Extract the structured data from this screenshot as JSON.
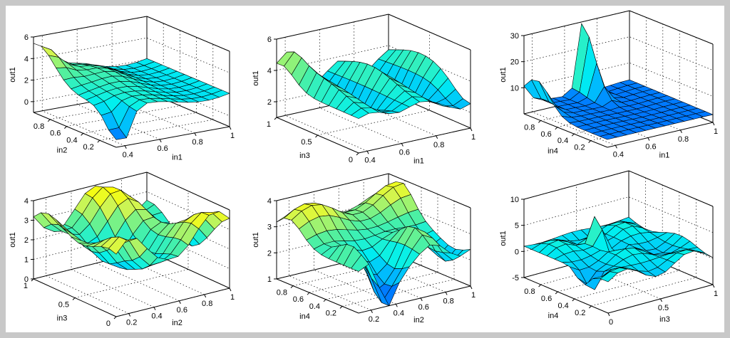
{
  "figure": {
    "background": "#c8c8c8",
    "plot_background": "#ffffff"
  },
  "chart_data": [
    {
      "type": "surface",
      "xlabel": "in1",
      "ylabel": "in2",
      "zlabel": "out1",
      "x_ticks": [
        "0.4",
        "0.6",
        "0.8",
        "1"
      ],
      "xlim": [
        0.35,
        1.0
      ],
      "y_ticks": [
        "0.2",
        "0.4",
        "0.6",
        "0.8"
      ],
      "ylim": [
        0.0,
        1.0
      ],
      "z_ticks": [
        "0",
        "2",
        "4",
        "6"
      ],
      "zlim": [
        -1,
        6
      ],
      "surface_shape": "high plateau (~5.5) at low in1/high in2, deep dip to ~-1 near in1=0.4,in2=0.0, flat ~2-3 elsewhere"
    },
    {
      "type": "surface",
      "xlabel": "in1",
      "ylabel": "in3",
      "zlabel": "out1",
      "x_ticks": [
        "0.4",
        "0.6",
        "0.8",
        "1"
      ],
      "xlim": [
        0.35,
        1.0
      ],
      "y_ticks": [
        "0",
        "0.5",
        "1"
      ],
      "ylim": [
        0.0,
        1.0
      ],
      "z_ticks": [
        "2",
        "4",
        "6"
      ],
      "zlim": [
        1,
        6
      ],
      "surface_shape": "ridges ~5 near in3 high, step ridges across in1, valleys ~2"
    },
    {
      "type": "surface",
      "xlabel": "in1",
      "ylabel": "in4",
      "zlabel": "out1",
      "x_ticks": [
        "0.4",
        "0.6",
        "0.8",
        "1"
      ],
      "xlim": [
        0.35,
        1.0
      ],
      "y_ticks": [
        "0.2",
        "0.4",
        "0.6",
        "0.8"
      ],
      "ylim": [
        0.0,
        1.0
      ],
      "z_ticks": [
        "10",
        "20",
        "30"
      ],
      "zlim": [
        0,
        30
      ],
      "surface_shape": "tall spike ~30 near in1=0.7,in4=1.0, plateau ~16 at in1=0.4 high in4, flat ~3 elsewhere"
    },
    {
      "type": "surface",
      "xlabel": "in2",
      "ylabel": "in3",
      "zlabel": "out1",
      "x_ticks": [
        "0.2",
        "0.4",
        "0.6",
        "0.8",
        "1"
      ],
      "xlim": [
        0.1,
        1.0
      ],
      "y_ticks": [
        "0",
        "0.5",
        "1"
      ],
      "ylim": [
        0.0,
        1.0
      ],
      "z_ticks": [
        "0",
        "1",
        "2",
        "3",
        "4"
      ],
      "zlim": [
        0,
        4
      ],
      "surface_shape": "wavy surface 1.5-4, high ridge along back"
    },
    {
      "type": "surface",
      "xlabel": "in2",
      "ylabel": "in4",
      "zlabel": "out1",
      "x_ticks": [
        "0.2",
        "0.4",
        "0.6",
        "0.8",
        "1"
      ],
      "xlim": [
        0.1,
        1.0
      ],
      "y_ticks": [
        "0.2",
        "0.4",
        "0.6",
        "0.8"
      ],
      "ylim": [
        0.0,
        1.0
      ],
      "z_ticks": [
        "1",
        "2",
        "3",
        "4"
      ],
      "zlim": [
        1,
        4
      ],
      "surface_shape": "high ridge ~4 at back, deep valley ~1 near in2=0.3 low in4"
    },
    {
      "type": "surface",
      "xlabel": "in3",
      "ylabel": "in4",
      "zlabel": "out1",
      "x_ticks": [
        "0",
        "0.5",
        "1"
      ],
      "xlim": [
        0.0,
        1.0
      ],
      "y_ticks": [
        "0.2",
        "0.4",
        "0.6",
        "0.8"
      ],
      "ylim": [
        0.0,
        1.0
      ],
      "z_ticks": [
        "-5",
        "0",
        "5",
        "10"
      ],
      "zlim": [
        -5,
        10
      ],
      "surface_shape": "mostly ~0-3 with spikes ~8 and dips ~-5 near the middle and front-left"
    }
  ]
}
